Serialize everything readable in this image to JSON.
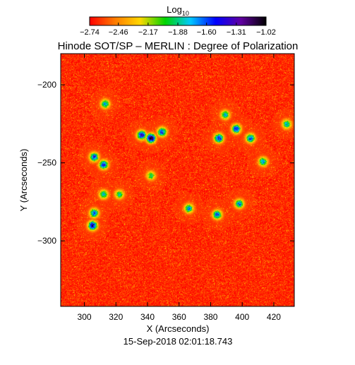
{
  "chart_data": {
    "type": "heatmap",
    "title": "Hinode SOT/SP – MERLIN : Degree of Polarization",
    "xlabel": "X (Arcseconds)",
    "ylabel": "Y (Arcseconds)",
    "timestamp": "15-Sep-2018 02:01:18.743",
    "xlim": [
      285,
      433
    ],
    "ylim": [
      -342,
      -180
    ],
    "x_ticks": [
      300,
      320,
      340,
      360,
      380,
      400,
      420
    ],
    "x_tick_labels": [
      "300",
      "320",
      "340",
      "360",
      "380",
      "400",
      "420"
    ],
    "y_ticks": [
      -200,
      -250,
      -300
    ],
    "y_tick_labels": [
      "−200",
      "−250",
      "−300"
    ],
    "colorbar": {
      "label_main": "Log",
      "label_sub": "10",
      "range": [
        -2.74,
        -1.02
      ],
      "tick_values": [
        -2.74,
        -2.46,
        -2.17,
        -1.88,
        -1.6,
        -1.31,
        -1.02
      ],
      "tick_labels": [
        "−2.74",
        "−2.46",
        "−2.17",
        "−1.88",
        "−1.60",
        "−1.31",
        "−1.02"
      ],
      "colormap": [
        "#ff0000",
        "#ff7b00",
        "#ffd700",
        "#00d400",
        "#00c8ff",
        "#0000ff",
        "#6000a0",
        "#000000"
      ]
    },
    "background_level": -2.66,
    "features": [
      {
        "x": 342,
        "y": -234,
        "peak": -1.02
      },
      {
        "x": 336,
        "y": -232,
        "peak": -1.35
      },
      {
        "x": 349,
        "y": -230,
        "peak": -1.45
      },
      {
        "x": 312,
        "y": -251,
        "peak": -1.45
      },
      {
        "x": 306,
        "y": -246,
        "peak": -1.5
      },
      {
        "x": 305,
        "y": -290,
        "peak": -1.25
      },
      {
        "x": 306,
        "y": -282,
        "peak": -1.55
      },
      {
        "x": 385,
        "y": -234,
        "peak": -1.4
      },
      {
        "x": 396,
        "y": -228,
        "peak": -1.45
      },
      {
        "x": 405,
        "y": -234,
        "peak": -1.55
      },
      {
        "x": 384,
        "y": -283,
        "peak": -1.55
      },
      {
        "x": 366,
        "y": -279,
        "peak": -1.7
      },
      {
        "x": 313,
        "y": -212,
        "peak": -1.7
      },
      {
        "x": 398,
        "y": -276,
        "peak": -1.65
      },
      {
        "x": 413,
        "y": -249,
        "peak": -1.7
      },
      {
        "x": 342,
        "y": -258,
        "peak": -1.9
      },
      {
        "x": 312,
        "y": -270,
        "peak": -1.75
      },
      {
        "x": 389,
        "y": -219,
        "peak": -1.75
      },
      {
        "x": 428,
        "y": -225,
        "peak": -1.75
      },
      {
        "x": 322,
        "y": -270,
        "peak": -1.85
      }
    ]
  }
}
